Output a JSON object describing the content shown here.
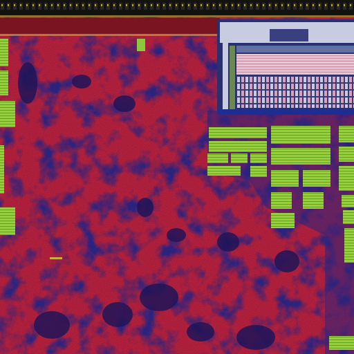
{
  "image": {
    "kind": "micrograph",
    "subject": "integrated-circuit-die",
    "palette": {
      "logic_sea": "#c4283a",
      "logic_dark": "#8c1a2a",
      "substrate": "#1e2d90",
      "substrate_dark": "#101a60",
      "metal_pad": "#8cc83c",
      "metal_pad_dark": "#4e7a1c",
      "sram_light": "#d0d4e8",
      "sram_pink": "#e890b0",
      "top_strip": "#141410",
      "top_gold": "#c8b040",
      "header_band": "#7a1420"
    }
  }
}
